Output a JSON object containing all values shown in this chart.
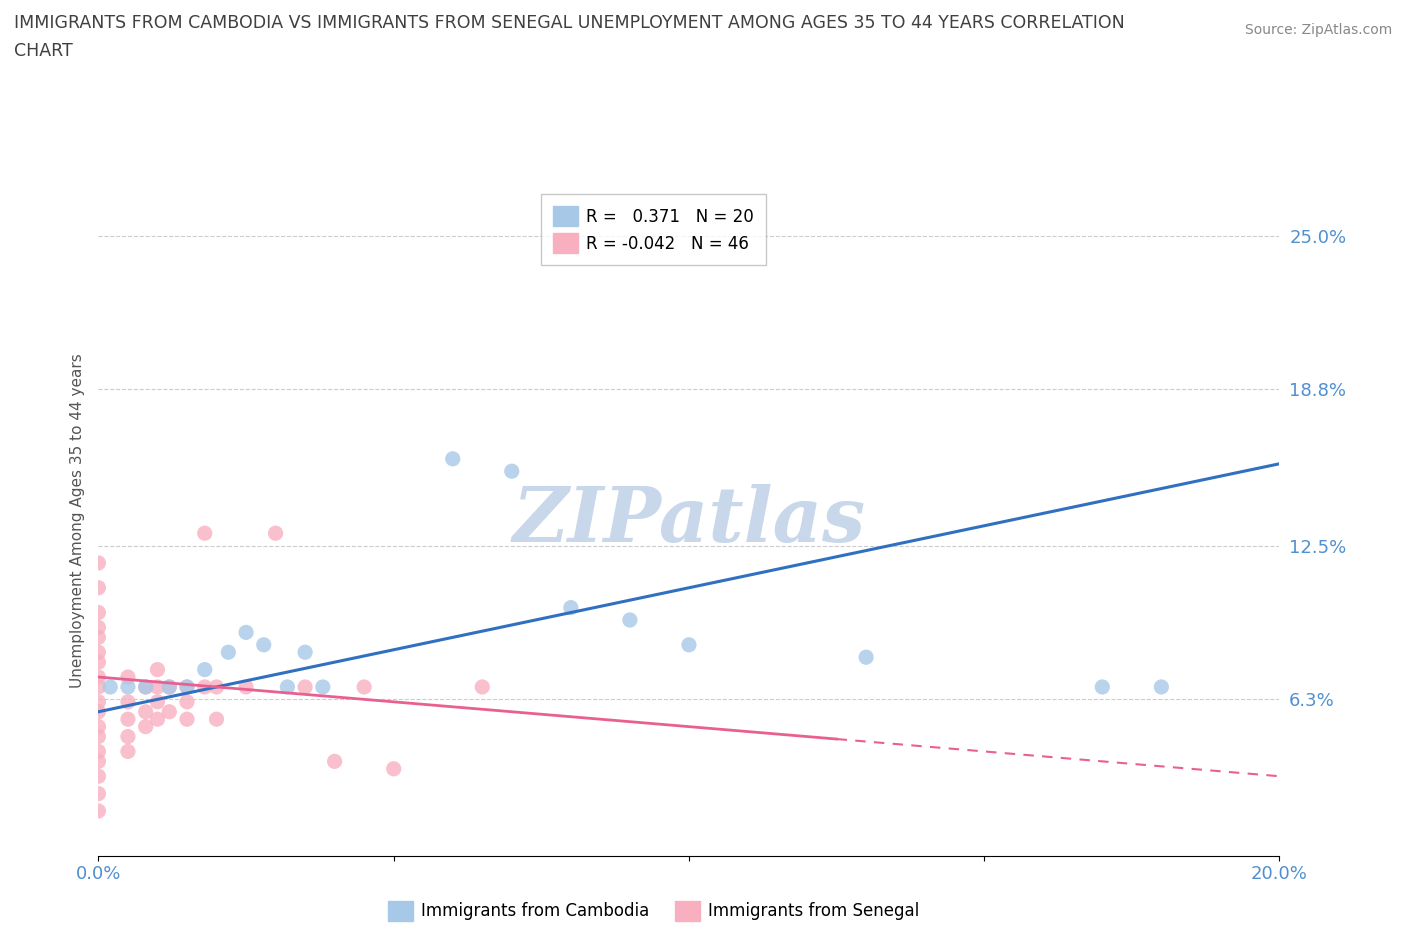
{
  "title_line1": "IMMIGRANTS FROM CAMBODIA VS IMMIGRANTS FROM SENEGAL UNEMPLOYMENT AMONG AGES 35 TO 44 YEARS CORRELATION",
  "title_line2": "CHART",
  "source": "Source: ZipAtlas.com",
  "ylabel": "Unemployment Among Ages 35 to 44 years",
  "xlim": [
    0.0,
    0.2
  ],
  "ylim": [
    -0.02,
    0.27
  ],
  "plot_ylim": [
    0.0,
    0.25
  ],
  "yticks": [
    0.0,
    0.063,
    0.125,
    0.188,
    0.25
  ],
  "ytick_labels": [
    "",
    "6.3%",
    "12.5%",
    "18.8%",
    "25.0%"
  ],
  "xticks": [
    0.0,
    0.05,
    0.1,
    0.15,
    0.2
  ],
  "xtick_labels": [
    "0.0%",
    "",
    "",
    "",
    "20.0%"
  ],
  "watermark": "ZIPatlas",
  "legend_entries": [
    {
      "label": "R =   0.371   N = 20",
      "color": "#a8c8e8"
    },
    {
      "label": "R = -0.042   N = 46",
      "color": "#f8b8c8"
    }
  ],
  "legend_bottom": [
    {
      "label": "Immigrants from Cambodia",
      "color": "#a8c8e8"
    },
    {
      "label": "Immigrants from Senegal",
      "color": "#f8b8c8"
    }
  ],
  "cambodia_scatter": [
    [
      0.002,
      0.068
    ],
    [
      0.005,
      0.068
    ],
    [
      0.008,
      0.068
    ],
    [
      0.012,
      0.068
    ],
    [
      0.015,
      0.068
    ],
    [
      0.018,
      0.075
    ],
    [
      0.022,
      0.082
    ],
    [
      0.025,
      0.09
    ],
    [
      0.028,
      0.085
    ],
    [
      0.032,
      0.068
    ],
    [
      0.035,
      0.082
    ],
    [
      0.038,
      0.068
    ],
    [
      0.06,
      0.16
    ],
    [
      0.07,
      0.155
    ],
    [
      0.08,
      0.1
    ],
    [
      0.09,
      0.095
    ],
    [
      0.1,
      0.085
    ],
    [
      0.13,
      0.08
    ],
    [
      0.17,
      0.068
    ],
    [
      0.18,
      0.068
    ]
  ],
  "senegal_scatter": [
    [
      0.0,
      0.118
    ],
    [
      0.0,
      0.108
    ],
    [
      0.0,
      0.098
    ],
    [
      0.0,
      0.092
    ],
    [
      0.0,
      0.088
    ],
    [
      0.0,
      0.082
    ],
    [
      0.0,
      0.078
    ],
    [
      0.0,
      0.072
    ],
    [
      0.0,
      0.068
    ],
    [
      0.0,
      0.062
    ],
    [
      0.0,
      0.058
    ],
    [
      0.0,
      0.052
    ],
    [
      0.0,
      0.048
    ],
    [
      0.0,
      0.042
    ],
    [
      0.0,
      0.038
    ],
    [
      0.0,
      0.032
    ],
    [
      0.0,
      0.025
    ],
    [
      0.0,
      0.018
    ],
    [
      0.005,
      0.072
    ],
    [
      0.005,
      0.062
    ],
    [
      0.005,
      0.055
    ],
    [
      0.005,
      0.048
    ],
    [
      0.005,
      0.042
    ],
    [
      0.008,
      0.068
    ],
    [
      0.008,
      0.058
    ],
    [
      0.008,
      0.052
    ],
    [
      0.01,
      0.075
    ],
    [
      0.01,
      0.068
    ],
    [
      0.01,
      0.062
    ],
    [
      0.01,
      0.055
    ],
    [
      0.012,
      0.068
    ],
    [
      0.012,
      0.058
    ],
    [
      0.015,
      0.068
    ],
    [
      0.015,
      0.062
    ],
    [
      0.015,
      0.055
    ],
    [
      0.018,
      0.13
    ],
    [
      0.018,
      0.068
    ],
    [
      0.02,
      0.068
    ],
    [
      0.02,
      0.055
    ],
    [
      0.025,
      0.068
    ],
    [
      0.03,
      0.13
    ],
    [
      0.035,
      0.068
    ],
    [
      0.04,
      0.038
    ],
    [
      0.045,
      0.068
    ],
    [
      0.05,
      0.035
    ],
    [
      0.065,
      0.068
    ]
  ],
  "cambodia_line_x": [
    0.0,
    0.2
  ],
  "cambodia_line_y": [
    0.058,
    0.158
  ],
  "senegal_line_x": [
    0.0,
    0.2
  ],
  "senegal_line_y": [
    0.072,
    0.032
  ],
  "cambodia_color": "#a8c8e8",
  "senegal_color": "#f8b0c0",
  "cambodia_line_color": "#3070c0",
  "senegal_line_color": "#e86090",
  "background_color": "#ffffff",
  "grid_color": "#cccccc",
  "tick_label_color": "#5090d0",
  "title_color": "#404040",
  "source_color": "#888888",
  "watermark_color": "#c8d8ea"
}
